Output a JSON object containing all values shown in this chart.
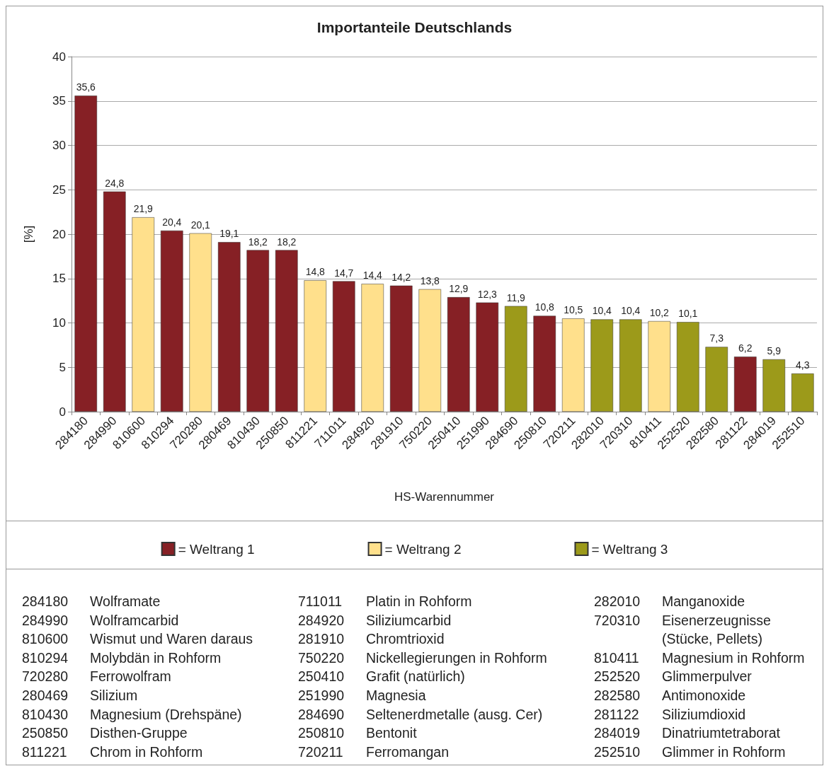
{
  "chart_data": {
    "type": "bar",
    "title": "Importanteile Deutschlands",
    "xlabel": "HS-Warennummer",
    "ylabel": "[%]",
    "categories": [
      "284180",
      "284990",
      "810600",
      "810294",
      "720280",
      "280469",
      "810430",
      "250850",
      "811221",
      "711011",
      "284920",
      "281910",
      "750220",
      "250410",
      "251990",
      "284690",
      "250810",
      "720211",
      "282010",
      "720310",
      "810411",
      "252520",
      "282580",
      "281122",
      "284019",
      "252510"
    ],
    "series": [
      {
        "name": "= Weltrang 1",
        "color": "#862025",
        "values": [
          35.6,
          24.8,
          null,
          20.4,
          null,
          19.1,
          18.2,
          18.2,
          null,
          14.7,
          null,
          14.2,
          null,
          12.9,
          12.3,
          null,
          10.8,
          null,
          null,
          null,
          null,
          null,
          null,
          6.2,
          null,
          null
        ],
        "value_labels": [
          "35,6",
          "24,8",
          null,
          "20,4",
          null,
          "19,1",
          "18,2",
          "18,2",
          null,
          "14,7",
          null,
          "14,2",
          null,
          "12,9",
          "12,3",
          null,
          "10,8",
          null,
          null,
          null,
          null,
          null,
          null,
          "6,2",
          null,
          null
        ]
      },
      {
        "name": "= Weltrang 2",
        "color": "#ffe08c",
        "values": [
          null,
          null,
          21.9,
          null,
          20.1,
          null,
          null,
          null,
          14.8,
          null,
          14.4,
          null,
          13.8,
          null,
          null,
          null,
          null,
          10.5,
          null,
          null,
          10.2,
          null,
          null,
          null,
          null,
          null
        ],
        "value_labels": [
          null,
          null,
          "21,9",
          null,
          "20,1",
          null,
          null,
          null,
          "14,8",
          null,
          "14,4",
          null,
          "13,8",
          null,
          null,
          null,
          null,
          "10,5",
          null,
          null,
          "10,2",
          null,
          null,
          null,
          null,
          null
        ]
      },
      {
        "name": "= Weltrang 3",
        "color": "#9c9a1a",
        "values": [
          null,
          null,
          null,
          null,
          null,
          null,
          null,
          null,
          null,
          null,
          null,
          null,
          null,
          null,
          null,
          11.9,
          null,
          null,
          10.4,
          10.4,
          null,
          10.1,
          7.3,
          null,
          5.9,
          4.3
        ],
        "value_labels": [
          null,
          null,
          null,
          null,
          null,
          null,
          null,
          null,
          null,
          null,
          null,
          null,
          null,
          null,
          null,
          "11,9",
          null,
          null,
          "10,4",
          "10,4",
          null,
          "10,1",
          "7,3",
          null,
          "5,9",
          "4,3"
        ]
      }
    ],
    "ylim": [
      0,
      40
    ],
    "yticks": [
      0,
      5,
      10,
      15,
      20,
      25,
      30,
      35,
      40
    ],
    "grid": "y",
    "legend": "bottom",
    "annotations": [
      "284180 Wolframate",
      "284990 Wolframcarbid",
      "810600 Wismut und Waren daraus",
      "810294 Molybdän in Rohform",
      "720280 Ferrowolfram",
      "280469 Silizium",
      "810430 Magnesium (Drehspäne)",
      "250850 Disthen-Gruppe",
      "811221 Chrom in Rohform",
      "711011 Platin in Rohform",
      "284920 Siliziumcarbid",
      "281910 Chromtrioxid",
      "750220 Nickellegierungen in Rohform",
      "250410 Grafit (natürlich)",
      "251990 Magnesia",
      "284690 Seltenerdmetalle (ausg. Cer)",
      "250810 Bentonit",
      "720211 Ferromangan",
      "282010 Manganoxide",
      "720310 Eisenerzeugnisse (Stücke, Pellets)",
      "810411 Magnesium in Rohform",
      "252520 Glimmerpulver",
      "282580 Antimonoxide",
      "281122 Siliziumdioxid",
      "284019 Dinatriumtetraborat",
      "252510 Glimmer in Rohform"
    ]
  }
}
